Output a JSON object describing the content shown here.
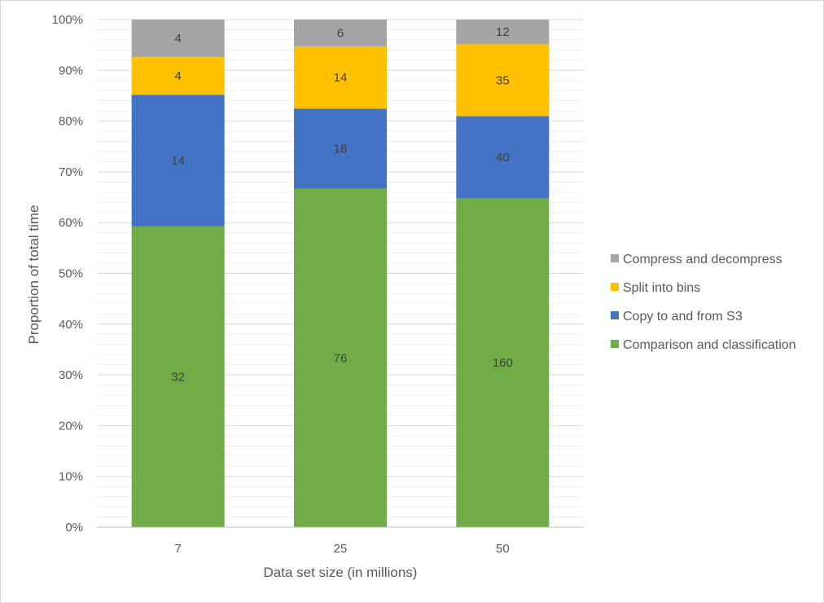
{
  "chart_data": {
    "type": "bar",
    "stacking": "percent",
    "categories": [
      "7",
      "25",
      "50"
    ],
    "series": [
      {
        "name": "Comparison and classification",
        "values": [
          32,
          76,
          160
        ],
        "color": "#70ad47"
      },
      {
        "name": "Copy to and from S3",
        "values": [
          14,
          18,
          40
        ],
        "color": "#4472c4"
      },
      {
        "name": "Split into bins",
        "values": [
          4,
          14,
          35
        ],
        "color": "#ffc000"
      },
      {
        "name": "Compress and decompress",
        "values": [
          4,
          6,
          12
        ],
        "color": "#a5a5a5"
      }
    ],
    "xlabel": "Data set size (in millions)",
    "ylabel": "Proportion of total time",
    "ylim": [
      0,
      100
    ],
    "yticks": [
      "0%",
      "10%",
      "20%",
      "30%",
      "40%",
      "50%",
      "60%",
      "70%",
      "80%",
      "90%",
      "100%"
    ],
    "grid": true,
    "legend_position": "right",
    "legend_order": [
      "Compress and decompress",
      "Split into bins",
      "Copy to and from S3",
      "Comparison and classification"
    ]
  }
}
